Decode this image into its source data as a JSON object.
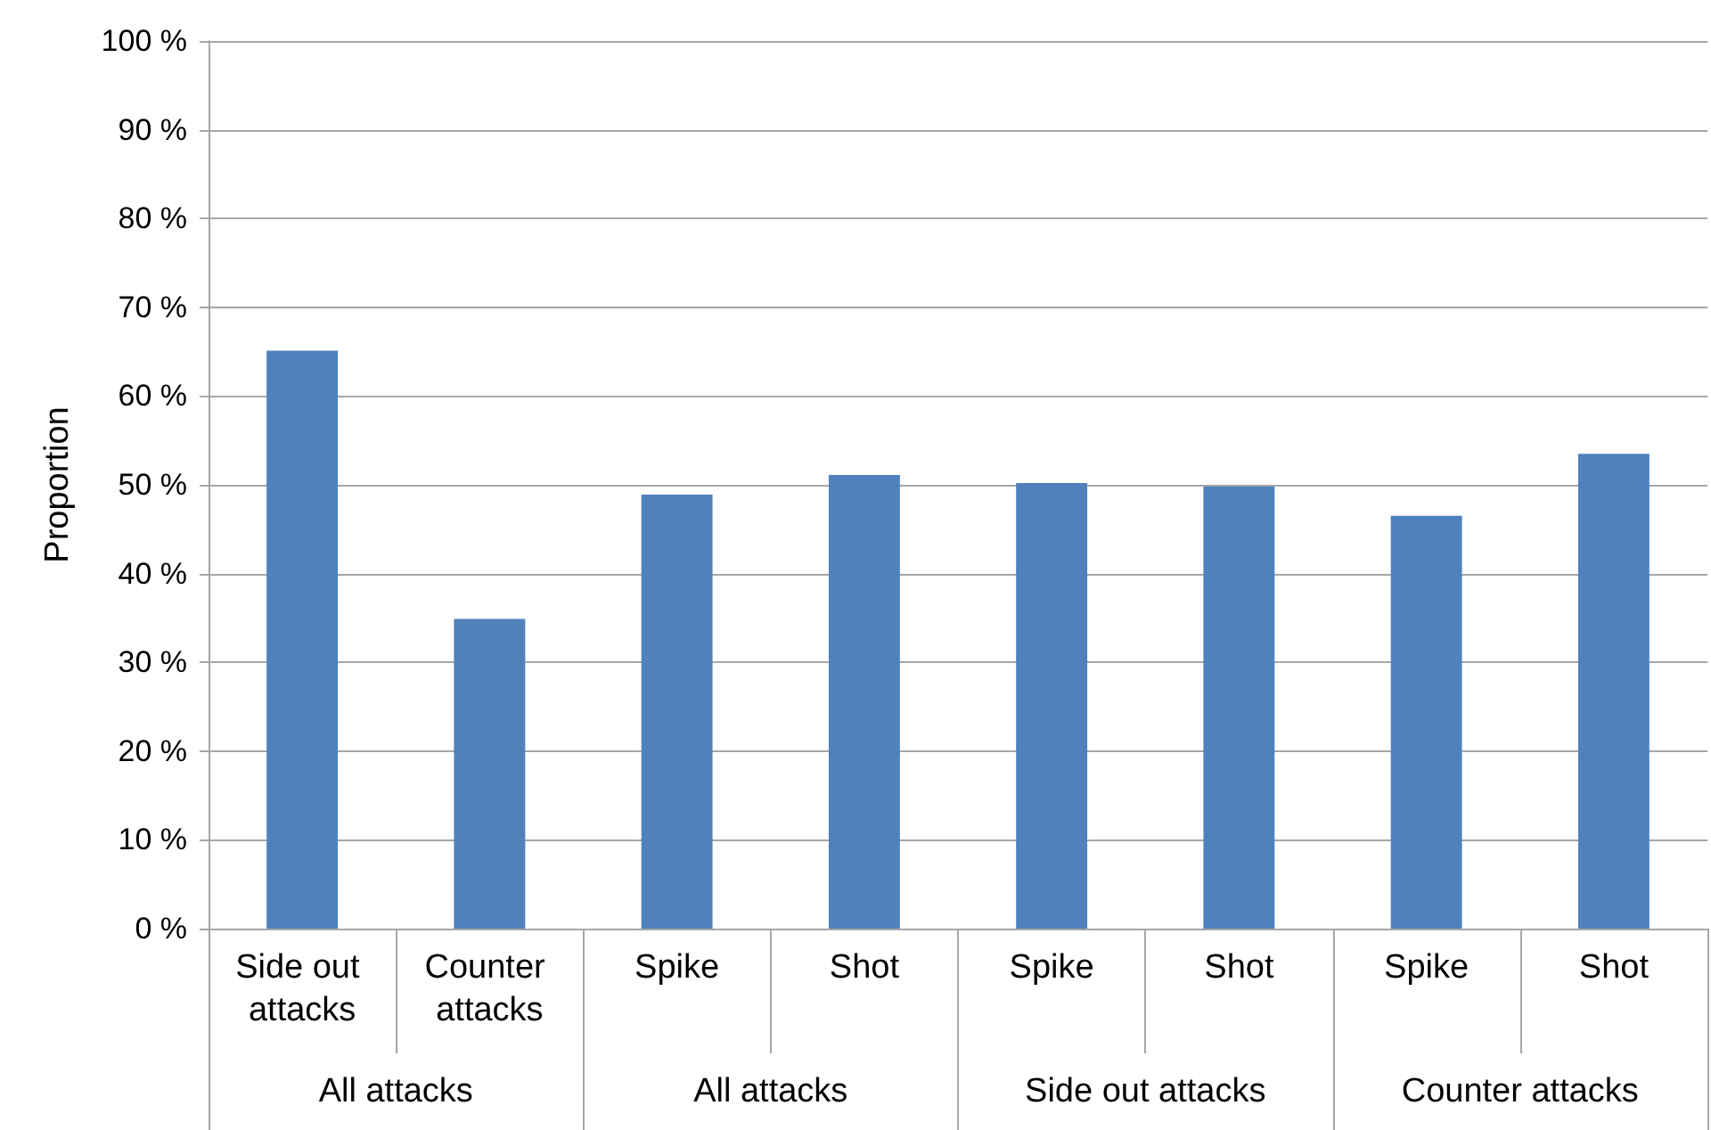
{
  "chart_data": {
    "type": "bar",
    "ylabel": "Proportion",
    "categories": [
      "Side out attacks",
      "Counter attacks",
      "Spike",
      "Shot",
      "Spike",
      "Shot",
      "Spike",
      "Shot"
    ],
    "values": [
      65.1,
      34.9,
      48.9,
      51.1,
      50.2,
      49.8,
      46.5,
      53.5
    ],
    "color": "#4f81bd",
    "ylim": [
      0,
      100
    ],
    "yticks": [
      {
        "value": 0,
        "label": "0 %"
      },
      {
        "value": 10,
        "label": "10 %"
      },
      {
        "value": 20,
        "label": "20 %"
      },
      {
        "value": 30,
        "label": "30 %"
      },
      {
        "value": 40,
        "label": "40 %"
      },
      {
        "value": 50,
        "label": "50 %"
      },
      {
        "value": 60,
        "label": "60 %"
      },
      {
        "value": 70,
        "label": "70 %"
      },
      {
        "value": 80,
        "label": "80 %"
      },
      {
        "value": 90,
        "label": "90 %"
      },
      {
        "value": 100,
        "label": "100 %"
      }
    ],
    "grid": "y",
    "annotations": [
      "All attacks",
      "All attacks",
      "Side out attacks",
      "Counter attacks"
    ]
  }
}
